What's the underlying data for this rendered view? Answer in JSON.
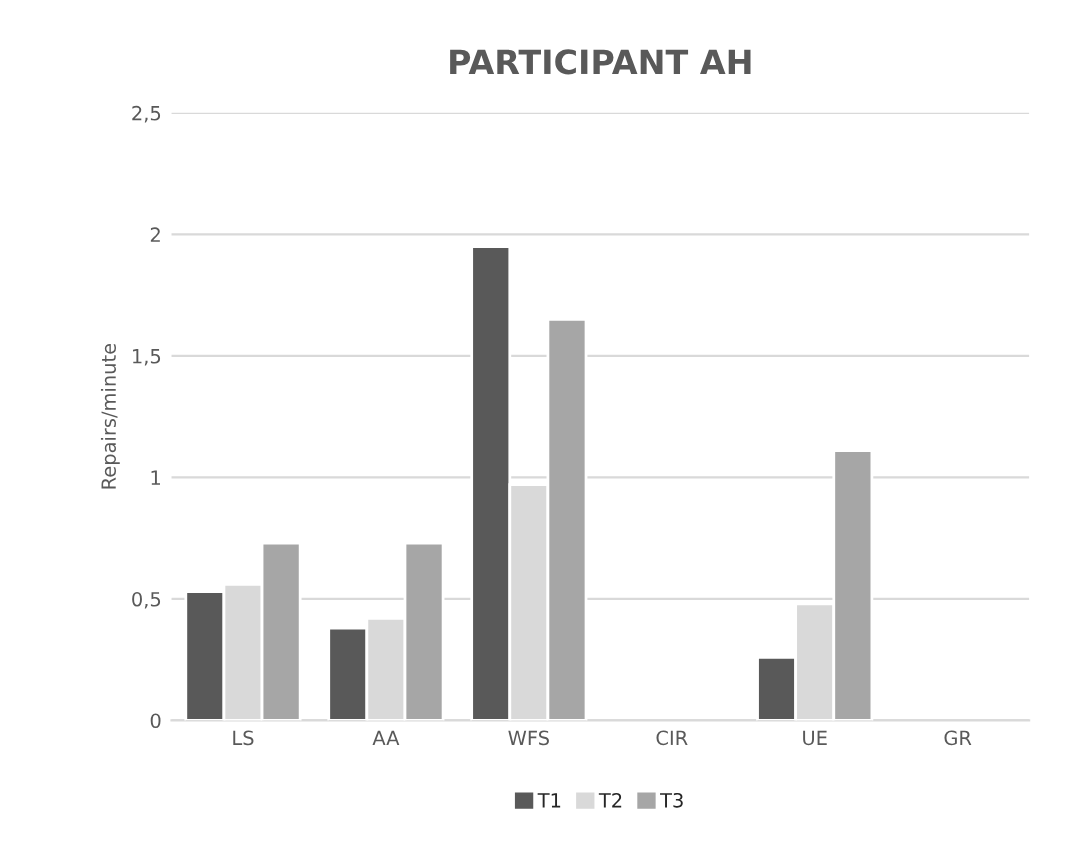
{
  "chart_data": {
    "type": "bar",
    "title": "PARTICIPANT AH",
    "ylabel": "Repairs/minute",
    "categories": [
      "LS",
      "AA",
      "WFS",
      "CIR",
      "UE",
      "GR"
    ],
    "series": [
      {
        "name": "T1",
        "color": "#595959",
        "values": [
          0.53,
          0.38,
          1.95,
          null,
          0.26,
          null
        ]
      },
      {
        "name": "T2",
        "color": "#d9d9d9",
        "values": [
          0.56,
          0.42,
          0.97,
          null,
          0.48,
          null
        ]
      },
      {
        "name": "T3",
        "color": "#a6a6a6",
        "values": [
          0.73,
          0.73,
          1.65,
          null,
          1.11,
          null
        ]
      }
    ],
    "ylim": [
      0,
      2.5
    ],
    "yticks": [
      0,
      {
        "value": 0.5,
        "label": "0,5"
      },
      1,
      {
        "value": 1.5,
        "label": "1,5"
      },
      2,
      {
        "value": 2.5,
        "label": "2,5"
      }
    ],
    "grid": "y",
    "legend": "bottom"
  }
}
